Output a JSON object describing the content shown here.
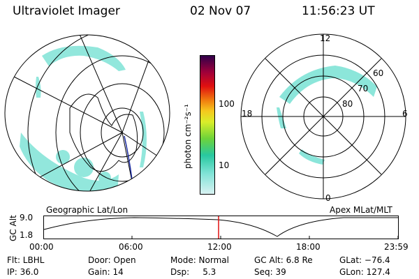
{
  "header": {
    "instrument": "Ultraviolet Imager",
    "date": "02 Nov 07",
    "time": "11:56:23 UT"
  },
  "colorbar": {
    "unit_label": "photon cm⁻²s⁻¹",
    "tick_labels": [
      "100",
      "10"
    ]
  },
  "geo_panel": {
    "label": "Geographic Lat/Lon"
  },
  "apex_panel": {
    "label": "Apex  MLat/MLT",
    "mlt_labels": {
      "top": "12",
      "left": "18",
      "right": "6",
      "bottom": "0"
    },
    "lat_labels": [
      "60",
      "70",
      "80"
    ]
  },
  "altitude_plot": {
    "ylabel": "GC Alt",
    "ytick_top": "9.0",
    "ytick_bottom": "1.8",
    "xticks": [
      "00:00",
      "06:00",
      "12:00",
      "18:00",
      "23:59"
    ]
  },
  "info": {
    "filter": "Flt: LBHL",
    "ip": "IP: 36.0",
    "door": "Door: Open",
    "gain": "Gain: 14",
    "mode": "Mode: Normal",
    "dsp": "Dsp:     5.3",
    "gc_alt": "GC Alt: 6.8 Re",
    "seq": "Seq: 39",
    "glat": "GLat: −76.4",
    "glon": "GLon: 127.4"
  },
  "colors": {
    "aurora": "#7fe3d6",
    "marker": "#e01010",
    "track": "#1a2aa0"
  }
}
